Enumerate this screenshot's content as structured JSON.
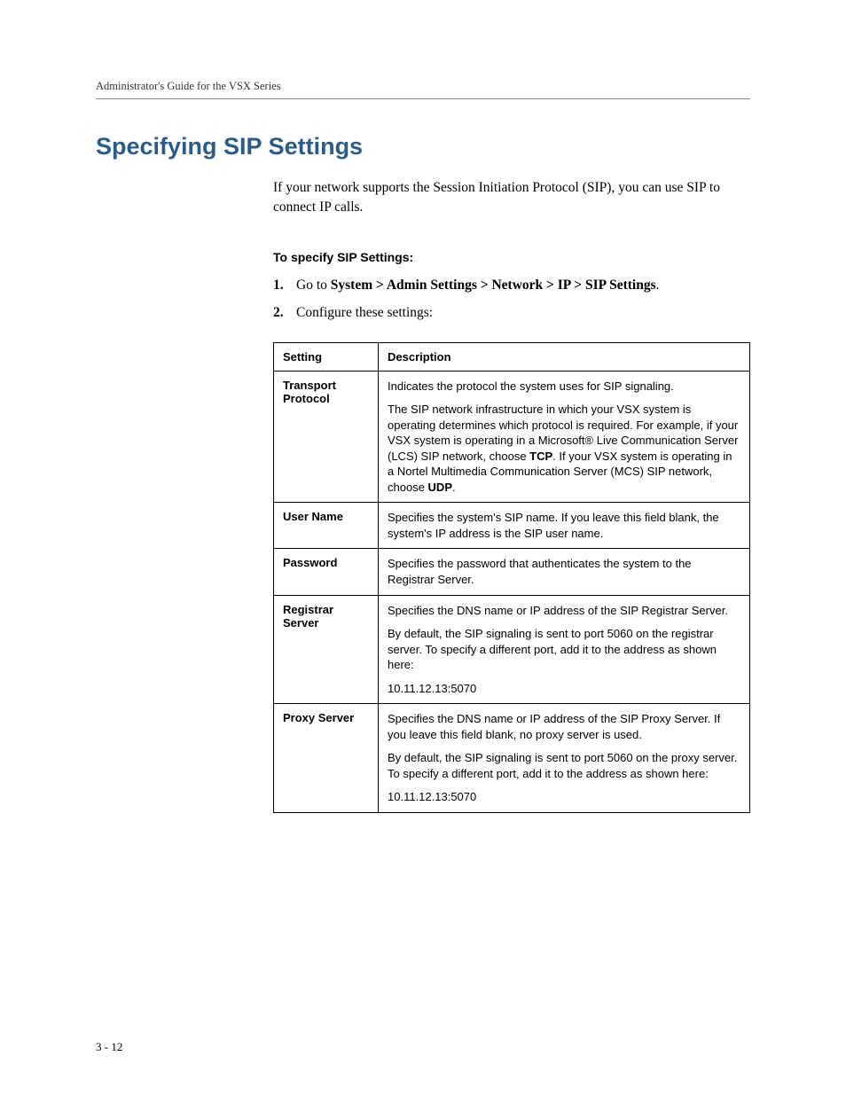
{
  "colors": {
    "heading_color": "#2b5c88",
    "text_color": "#000000",
    "border_color": "#000000",
    "rule_color": "#888888"
  },
  "header": {
    "running_title": "Administrator's Guide for the VSX Series"
  },
  "section": {
    "heading": "Specifying SIP Settings",
    "intro": "If your network supports the Session Initiation Protocol (SIP), you can use SIP to connect IP calls.",
    "subheading": "To specify SIP Settings:"
  },
  "steps": {
    "num1": "1.",
    "body1_prefix": "Go to ",
    "body1_path": "System > Admin Settings > Network > IP > SIP Settings",
    "body1_suffix": ".",
    "num2": "2.",
    "body2": "Configure these settings:"
  },
  "table": {
    "col1": "Setting",
    "col2": "Description",
    "rows": {
      "r0": {
        "setting": "Transport Protocol",
        "p0": "Indicates the protocol the system uses for SIP signaling.",
        "p1a": "The SIP network infrastructure in which your VSX system is operating determines which protocol is required. For example, if your VSX system is operating in a Microsoft® Live Communication Server (LCS) SIP network, choose ",
        "p1b": "TCP",
        "p1c": ". If your VSX system is operating in a Nortel Multimedia Communication Server (MCS) SIP network, choose ",
        "p1d": "UDP",
        "p1e": "."
      },
      "r1": {
        "setting": "User Name",
        "p0": "Specifies the system's SIP name. If you leave this field blank, the system's IP address is the SIP user name."
      },
      "r2": {
        "setting": "Password",
        "p0": "Specifies the password that authenticates the system to the Registrar Server."
      },
      "r3": {
        "setting": "Registrar Server",
        "p0": "Specifies the DNS name or IP address of the SIP Registrar Server.",
        "p1": "By default, the SIP signaling is sent to port 5060 on the registrar server. To specify a different port, add it to the address as shown here:",
        "p2": "10.11.12.13:5070"
      },
      "r4": {
        "setting": "Proxy Server",
        "p0": "Specifies the DNS name or IP address of the SIP Proxy Server. If you leave this field blank, no proxy server is used.",
        "p1": "By default, the SIP signaling is sent to port 5060 on the proxy server. To specify a different port, add it to the address as shown here:",
        "p2": "10.11.12.13:5070"
      }
    }
  },
  "footer": {
    "page_number": "3 - 12"
  }
}
